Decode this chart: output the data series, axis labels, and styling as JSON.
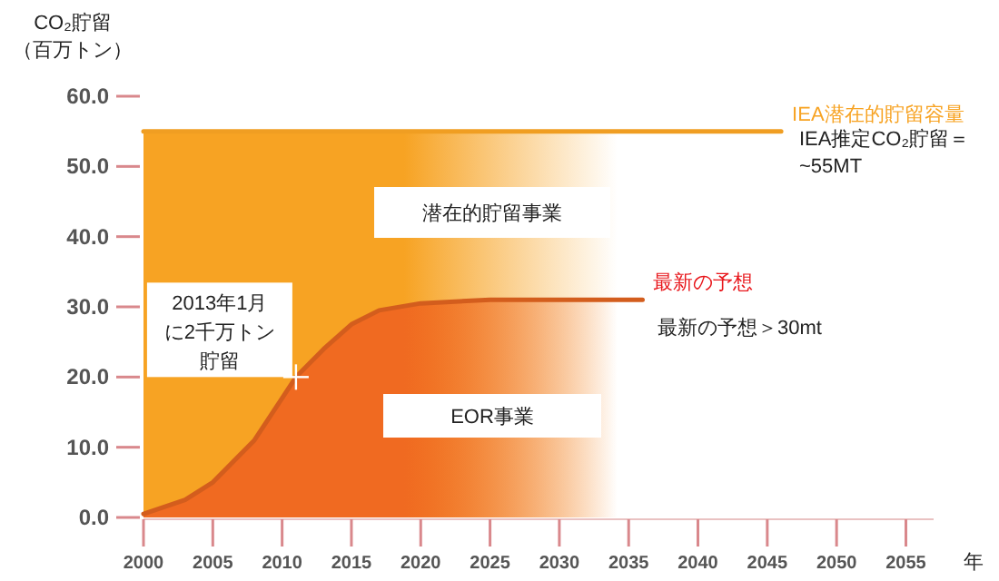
{
  "chart_data": {
    "type": "area",
    "ylabel": "CO₂貯留（百万トン）",
    "xlabel": "年",
    "xlim": [
      2000,
      2057
    ],
    "xticks": [
      2000,
      2005,
      2010,
      2015,
      2020,
      2025,
      2030,
      2035,
      2040,
      2045,
      2050,
      2055
    ],
    "ylim": [
      0,
      60
    ],
    "yticks": [
      {
        "value": 0,
        "label": "0.0"
      },
      {
        "value": 10,
        "label": "10.0"
      },
      {
        "value": 20,
        "label": "20.0"
      },
      {
        "value": 30,
        "label": "30.0"
      },
      {
        "value": 40,
        "label": "40.0"
      },
      {
        "value": 50,
        "label": "50.0"
      },
      {
        "value": 60,
        "label": "60.0"
      }
    ],
    "grid": false,
    "series": [
      {
        "name": "IEA潜在的貯留容量",
        "color": "#f7a323",
        "x": [
          2000,
          2046
        ],
        "values": [
          55,
          55
        ]
      },
      {
        "name": "最新の予想",
        "color": "#f06a21",
        "x": [
          2000,
          2003,
          2005,
          2008,
          2010,
          2011,
          2013,
          2015,
          2017,
          2020,
          2025,
          2036
        ],
        "values": [
          0.5,
          2.5,
          5,
          11,
          17,
          20,
          24,
          27.5,
          29.5,
          30.5,
          31,
          31
        ]
      }
    ],
    "annotations": [
      "潜在的貯留事業",
      "EOR事業",
      {
        "text": "2013年1月に2千万トン貯留",
        "x": 2011,
        "y": 20
      },
      "IEA推定CO₂貯留＝~55MT",
      "最新の予想＞30mt"
    ]
  }
}
